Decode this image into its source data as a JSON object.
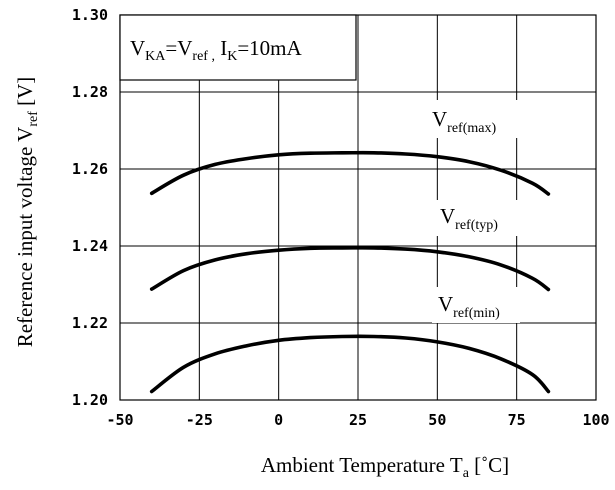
{
  "chart_data": {
    "type": "line",
    "xlabel": "Ambient Temperature T",
    "xlabel_sub": "a",
    "xlabel_unit": " [˚C]",
    "ylabel": "Reference input voltage V",
    "ylabel_sub": "ref",
    "ylabel_unit": " [V]",
    "xlim": [
      -50,
      100
    ],
    "ylim": [
      1.2,
      1.3
    ],
    "x_ticks": [
      "-50",
      "-25",
      "0",
      "25",
      "50",
      "75",
      "100"
    ],
    "y_ticks": [
      "1.30",
      "1.28",
      "1.26",
      "1.24",
      "1.22",
      "1.20"
    ],
    "grid": true,
    "condition": {
      "v1": "V",
      "s1": "KA",
      "eq1": "=V",
      "s2": "ref ,",
      "mid": " I",
      "s3": "K",
      "end": "=10mA"
    },
    "series": [
      {
        "name": "V",
        "name_sub": "ref(max)",
        "x": [
          -40,
          -30,
          -20,
          -10,
          0,
          10,
          20,
          30,
          40,
          50,
          60,
          70,
          80,
          85
        ],
        "y": [
          1.2537,
          1.2584,
          1.2612,
          1.2627,
          1.2637,
          1.2641,
          1.2642,
          1.2642,
          1.2639,
          1.2632,
          1.2619,
          1.2597,
          1.2563,
          1.2535
        ]
      },
      {
        "name": "V",
        "name_sub": "ref(typ)",
        "x": [
          -40,
          -30,
          -20,
          -10,
          0,
          10,
          20,
          30,
          40,
          50,
          60,
          70,
          80,
          85
        ],
        "y": [
          1.2288,
          1.2336,
          1.2364,
          1.238,
          1.2389,
          1.2394,
          1.2395,
          1.2395,
          1.2392,
          1.2385,
          1.2372,
          1.2351,
          1.2316,
          1.2287
        ]
      },
      {
        "name": "V",
        "name_sub": "ref(min)",
        "x": [
          -40,
          -30,
          -20,
          -10,
          0,
          10,
          20,
          30,
          40,
          50,
          60,
          70,
          80,
          85
        ],
        "y": [
          1.2022,
          1.2085,
          1.212,
          1.2141,
          1.2155,
          1.2162,
          1.2165,
          1.2165,
          1.2161,
          1.2151,
          1.2134,
          1.2107,
          1.2066,
          1.2022
        ]
      }
    ]
  }
}
